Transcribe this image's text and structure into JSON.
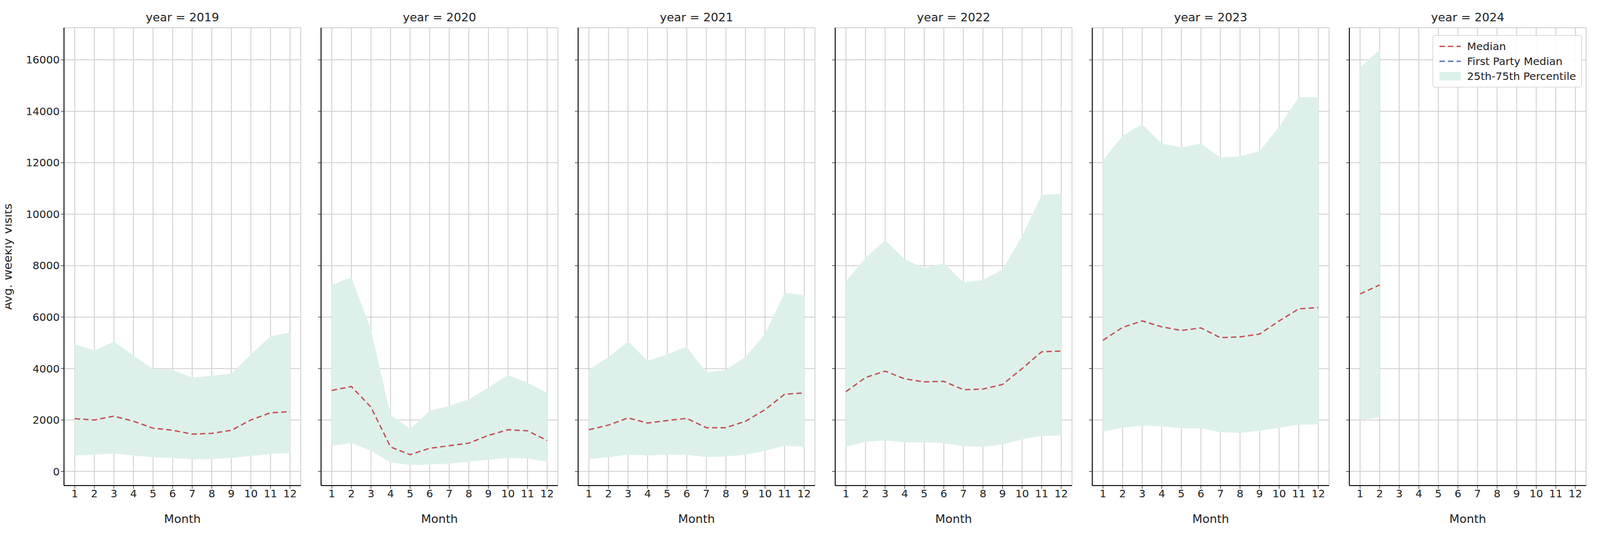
{
  "chart_data": [
    {
      "type": "line",
      "title": "year = 2019",
      "xlabel": "Month",
      "ylabel": "Avg. Weekly Visits",
      "x": [
        1,
        2,
        3,
        4,
        5,
        6,
        7,
        8,
        9,
        10,
        11,
        12
      ],
      "xlim": [
        0.45,
        12.55
      ],
      "xticks": [
        1,
        2,
        3,
        4,
        5,
        6,
        7,
        8,
        9,
        10,
        11,
        12
      ],
      "ylim": [
        -550,
        17250
      ],
      "yticks": [
        0,
        2000,
        4000,
        6000,
        8000,
        10000,
        12000,
        14000,
        16000
      ],
      "grid": true,
      "series": [
        {
          "name": "Median",
          "color": "#c44e52",
          "line_style": "dashed",
          "values": [
            2050,
            2000,
            2150,
            1950,
            1680,
            1600,
            1450,
            1480,
            1600,
            2000,
            2280,
            2320
          ]
        },
        {
          "name": "First Party Median",
          "color": "#4c72b0",
          "line_style": "dashed",
          "values": [
            null,
            null,
            null,
            null,
            null,
            null,
            null,
            null,
            null,
            null,
            null,
            null
          ]
        }
      ],
      "band": {
        "name": "25th-75th Percentile",
        "color": "#ddf1ea",
        "lower": [
          620,
          650,
          700,
          620,
          550,
          520,
          470,
          480,
          530,
          600,
          680,
          720
        ],
        "upper": [
          4950,
          4700,
          5050,
          4500,
          3980,
          3950,
          3650,
          3720,
          3800,
          4550,
          5250,
          5400
        ]
      }
    },
    {
      "type": "line",
      "title": "year = 2020",
      "xlabel": "Month",
      "x": [
        1,
        2,
        3,
        4,
        5,
        6,
        7,
        8,
        9,
        10,
        11,
        12
      ],
      "xlim": [
        0.45,
        12.55
      ],
      "xticks": [
        1,
        2,
        3,
        4,
        5,
        6,
        7,
        8,
        9,
        10,
        11,
        12
      ],
      "ylim": [
        -550,
        17250
      ],
      "yticks": [
        0,
        2000,
        4000,
        6000,
        8000,
        10000,
        12000,
        14000,
        16000
      ],
      "grid": true,
      "tick_labels": "x",
      "series": [
        {
          "name": "Median",
          "color": "#c44e52",
          "line_style": "dashed",
          "values": [
            3150,
            3300,
            2500,
            950,
            650,
            900,
            1000,
            1100,
            1400,
            1620,
            1580,
            1200
          ]
        },
        {
          "name": "First Party Median",
          "color": "#4c72b0",
          "line_style": "dashed",
          "values": [
            null,
            null,
            null,
            null,
            null,
            null,
            null,
            null,
            null,
            null,
            null,
            null
          ]
        }
      ],
      "band": {
        "name": "25th-75th Percentile",
        "color": "#ddf1ea",
        "lower": [
          1000,
          1100,
          800,
          350,
          250,
          270,
          300,
          380,
          450,
          520,
          500,
          380
        ],
        "upper": [
          7250,
          7550,
          5500,
          2200,
          1650,
          2350,
          2550,
          2800,
          3250,
          3750,
          3450,
          3050
        ]
      }
    },
    {
      "type": "line",
      "title": "year = 2021",
      "xlabel": "Month",
      "x": [
        1,
        2,
        3,
        4,
        5,
        6,
        7,
        8,
        9,
        10,
        11,
        12
      ],
      "xlim": [
        0.45,
        12.55
      ],
      "xticks": [
        1,
        2,
        3,
        4,
        5,
        6,
        7,
        8,
        9,
        10,
        11,
        12
      ],
      "ylim": [
        -550,
        17250
      ],
      "yticks": [
        0,
        2000,
        4000,
        6000,
        8000,
        10000,
        12000,
        14000,
        16000
      ],
      "grid": true,
      "tick_labels": "x",
      "series": [
        {
          "name": "Median",
          "color": "#c44e52",
          "line_style": "dashed",
          "values": [
            1620,
            1800,
            2080,
            1880,
            1980,
            2060,
            1700,
            1700,
            1950,
            2400,
            3000,
            3050
          ]
        },
        {
          "name": "First Party Median",
          "color": "#4c72b0",
          "line_style": "dashed",
          "values": [
            null,
            null,
            null,
            null,
            null,
            null,
            null,
            null,
            null,
            null,
            null,
            null
          ]
        }
      ],
      "band": {
        "name": "25th-75th Percentile",
        "color": "#ddf1ea",
        "lower": [
          480,
          550,
          650,
          620,
          650,
          640,
          560,
          580,
          650,
          800,
          1000,
          960
        ],
        "upper": [
          3950,
          4450,
          5050,
          4300,
          4550,
          4850,
          3850,
          3950,
          4450,
          5350,
          6950,
          6850
        ]
      }
    },
    {
      "type": "line",
      "title": "year = 2022",
      "xlabel": "Month",
      "x": [
        1,
        2,
        3,
        4,
        5,
        6,
        7,
        8,
        9,
        10,
        11,
        12
      ],
      "xlim": [
        0.45,
        12.55
      ],
      "xticks": [
        1,
        2,
        3,
        4,
        5,
        6,
        7,
        8,
        9,
        10,
        11,
        12
      ],
      "ylim": [
        -550,
        17250
      ],
      "yticks": [
        0,
        2000,
        4000,
        6000,
        8000,
        10000,
        12000,
        14000,
        16000
      ],
      "grid": true,
      "tick_labels": "x",
      "series": [
        {
          "name": "Median",
          "color": "#c44e52",
          "line_style": "dashed",
          "values": [
            3100,
            3650,
            3900,
            3600,
            3480,
            3500,
            3180,
            3200,
            3380,
            4000,
            4650,
            4680
          ]
        },
        {
          "name": "First Party Median",
          "color": "#4c72b0",
          "line_style": "dashed",
          "values": [
            null,
            null,
            null,
            null,
            null,
            null,
            null,
            null,
            null,
            null,
            null,
            null
          ]
        }
      ],
      "band": {
        "name": "25th-75th Percentile",
        "color": "#ddf1ea",
        "lower": [
          950,
          1150,
          1200,
          1130,
          1130,
          1100,
          980,
          960,
          1050,
          1250,
          1380,
          1400
        ],
        "upper": [
          7400,
          8300,
          9000,
          8250,
          7900,
          8100,
          7350,
          7450,
          7850,
          9150,
          10750,
          10800
        ]
      }
    },
    {
      "type": "line",
      "title": "year = 2023",
      "xlabel": "Month",
      "x": [
        1,
        2,
        3,
        4,
        5,
        6,
        7,
        8,
        9,
        10,
        11,
        12
      ],
      "xlim": [
        0.45,
        12.55
      ],
      "xticks": [
        1,
        2,
        3,
        4,
        5,
        6,
        7,
        8,
        9,
        10,
        11,
        12
      ],
      "ylim": [
        -550,
        17250
      ],
      "yticks": [
        0,
        2000,
        4000,
        6000,
        8000,
        10000,
        12000,
        14000,
        16000
      ],
      "grid": true,
      "tick_labels": "x",
      "series": [
        {
          "name": "Median",
          "color": "#c44e52",
          "line_style": "dashed",
          "values": [
            5100,
            5600,
            5850,
            5620,
            5480,
            5580,
            5200,
            5230,
            5340,
            5850,
            6320,
            6370
          ]
        },
        {
          "name": "First Party Median",
          "color": "#4c72b0",
          "line_style": "dashed",
          "values": [
            null,
            null,
            null,
            null,
            null,
            null,
            null,
            null,
            null,
            null,
            null,
            null
          ]
        }
      ],
      "band": {
        "name": "25th-75th Percentile",
        "color": "#ddf1ea",
        "lower": [
          1550,
          1700,
          1780,
          1750,
          1680,
          1680,
          1520,
          1500,
          1580,
          1700,
          1820,
          1830
        ],
        "upper": [
          12100,
          13050,
          13500,
          12750,
          12600,
          12750,
          12200,
          12250,
          12450,
          13400,
          14550,
          14550
        ]
      }
    },
    {
      "type": "line",
      "title": "year = 2024",
      "xlabel": "Month",
      "x": [
        1,
        2,
        3,
        4,
        5,
        6,
        7,
        8,
        9,
        10,
        11,
        12
      ],
      "xlim": [
        0.45,
        12.55
      ],
      "xticks": [
        1,
        2,
        3,
        4,
        5,
        6,
        7,
        8,
        9,
        10,
        11,
        12
      ],
      "ylim": [
        -550,
        17250
      ],
      "yticks": [
        0,
        2000,
        4000,
        6000,
        8000,
        10000,
        12000,
        14000,
        16000
      ],
      "grid": true,
      "tick_labels": "x",
      "legend": "upper right",
      "series": [
        {
          "name": "Median",
          "color": "#c44e52",
          "line_style": "dashed",
          "values": [
            6900,
            7250,
            null,
            null,
            null,
            null,
            null,
            null,
            null,
            null,
            null,
            null
          ]
        },
        {
          "name": "First Party Median",
          "color": "#4c72b0",
          "line_style": "dashed",
          "values": [
            null,
            null,
            null,
            null,
            null,
            null,
            null,
            null,
            null,
            null,
            null,
            null
          ]
        }
      ],
      "band": {
        "name": "25th-75th Percentile",
        "color": "#ddf1ea",
        "lower": [
          2000,
          2100,
          null,
          null,
          null,
          null,
          null,
          null,
          null,
          null,
          null,
          null
        ],
        "upper": [
          15700,
          16400,
          null,
          null,
          null,
          null,
          null,
          null,
          null,
          null,
          null,
          null
        ]
      }
    }
  ]
}
